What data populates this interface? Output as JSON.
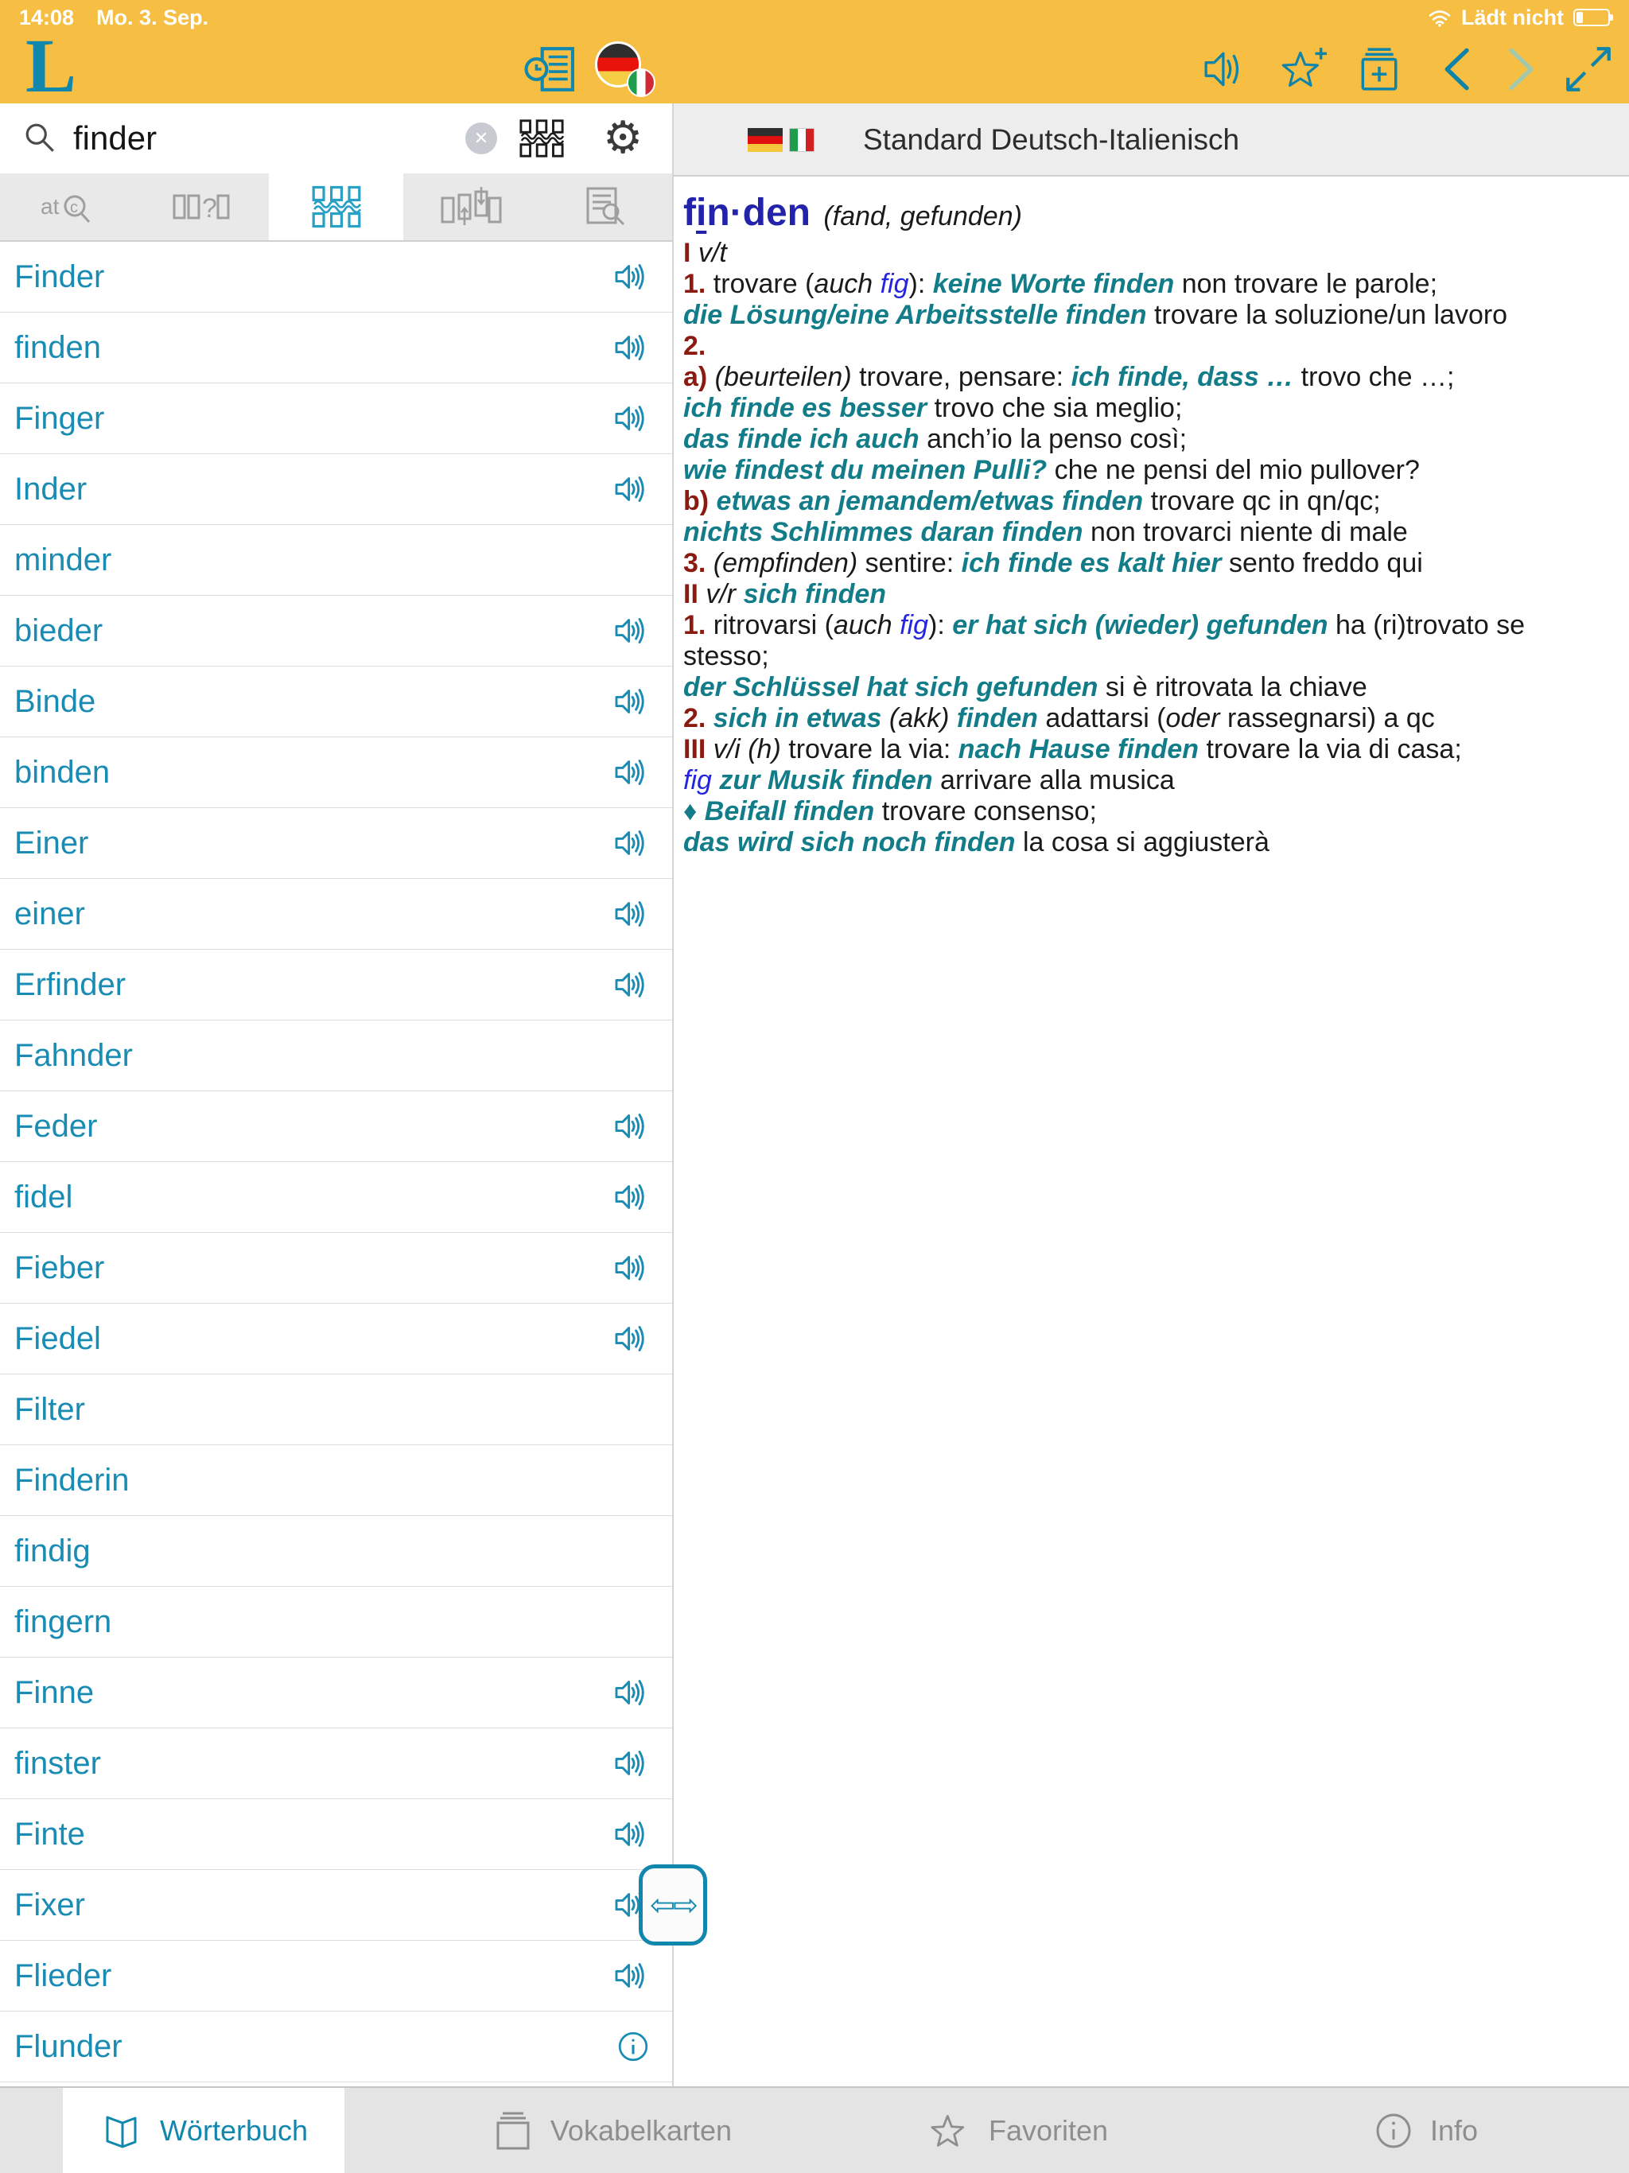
{
  "colors": {
    "toolbar_yellow": "#F6BF43",
    "accent_teal": "#1287AE",
    "list_blue": "#1A8CB4",
    "phrase_teal": "#127C88",
    "section_maroon": "#8B1A11",
    "headword_blue": "#2222AA",
    "link_blue": "#2525E0",
    "disabled_chevron": "#A3C9AD"
  },
  "status_bar": {
    "time": "14:08",
    "date": "Mo. 3. Sep.",
    "battery_label": "Lädt nicht"
  },
  "search": {
    "value": "finder",
    "placeholder": ""
  },
  "tabs": {
    "active_index": 2,
    "items": [
      {
        "name": "exact-search"
      },
      {
        "name": "wildcard-search"
      },
      {
        "name": "fuzzy-search"
      },
      {
        "name": "word-forms-search"
      },
      {
        "name": "fulltext-search"
      }
    ]
  },
  "word_list": {
    "items": [
      {
        "word": "Finder",
        "trailing_icon": "speaker"
      },
      {
        "word": "finden",
        "trailing_icon": "speaker"
      },
      {
        "word": "Finger",
        "trailing_icon": "speaker"
      },
      {
        "word": "Inder",
        "trailing_icon": "speaker"
      },
      {
        "word": "minder",
        "trailing_icon": null
      },
      {
        "word": "bieder",
        "trailing_icon": "speaker"
      },
      {
        "word": "Binde",
        "trailing_icon": "speaker"
      },
      {
        "word": "binden",
        "trailing_icon": "speaker"
      },
      {
        "word": "Einer",
        "trailing_icon": "speaker"
      },
      {
        "word": "einer",
        "trailing_icon": "speaker"
      },
      {
        "word": "Erfinder",
        "trailing_icon": "speaker"
      },
      {
        "word": "Fahnder",
        "trailing_icon": null
      },
      {
        "word": "Feder",
        "trailing_icon": "speaker"
      },
      {
        "word": "fidel",
        "trailing_icon": "speaker"
      },
      {
        "word": "Fieber",
        "trailing_icon": "speaker"
      },
      {
        "word": "Fiedel",
        "trailing_icon": "speaker"
      },
      {
        "word": "Filter",
        "trailing_icon": null
      },
      {
        "word": "Finderin",
        "trailing_icon": null
      },
      {
        "word": "findig",
        "trailing_icon": null
      },
      {
        "word": "fingern",
        "trailing_icon": null
      },
      {
        "word": "Finne",
        "trailing_icon": "speaker"
      },
      {
        "word": "finster",
        "trailing_icon": "speaker"
      },
      {
        "word": "Finte",
        "trailing_icon": "speaker"
      },
      {
        "word": "Fixer",
        "trailing_icon": "speaker"
      },
      {
        "word": "Flieder",
        "trailing_icon": "speaker"
      },
      {
        "word": "Flunder",
        "trailing_icon": "info"
      }
    ]
  },
  "dict_header": {
    "title": "Standard Deutsch-Italienisch"
  },
  "entry": {
    "headword": {
      "pre": "f",
      "stress": "i",
      "post": "n·den"
    },
    "inflection": "(fand, gefunden)",
    "paragraphs": [
      [
        {
          "s": "num",
          "t": "I"
        },
        {
          "s": "it",
          "t": " v/t"
        }
      ],
      [
        {
          "s": "num",
          "t": "1."
        },
        {
          "s": "pl",
          "t": " trovare ("
        },
        {
          "s": "it",
          "t": "auch"
        },
        {
          "s": "pl",
          "t": " "
        },
        {
          "s": "fig",
          "t": "fig"
        },
        {
          "s": "pl",
          "t": "): "
        },
        {
          "s": "ph",
          "t": "keine Worte finden"
        },
        {
          "s": "pl",
          "t": " non trovare le parole;"
        }
      ],
      [
        {
          "s": "ph",
          "t": "die Lösung/eine Arbeitsstelle finden"
        },
        {
          "s": "pl",
          "t": " trovare la soluzione/un lavoro"
        }
      ],
      [
        {
          "s": "num",
          "t": "2."
        }
      ],
      [
        {
          "s": "num",
          "t": "a)"
        },
        {
          "s": "it",
          "t": " (beurteilen)"
        },
        {
          "s": "pl",
          "t": " trovare, pensare: "
        },
        {
          "s": "ph",
          "t": "ich finde, dass …"
        },
        {
          "s": "pl",
          "t": " trovo che …;"
        }
      ],
      [
        {
          "s": "ph",
          "t": "ich finde es besser"
        },
        {
          "s": "pl",
          "t": " trovo che sia meglio;"
        }
      ],
      [
        {
          "s": "ph",
          "t": "das finde ich auch"
        },
        {
          "s": "pl",
          "t": " anch’io la penso così;"
        }
      ],
      [
        {
          "s": "ph",
          "t": "wie findest du meinen Pulli?"
        },
        {
          "s": "pl",
          "t": " che ne pensi del mio pullover?"
        }
      ],
      [
        {
          "s": "num",
          "t": "b)"
        },
        {
          "s": "ph",
          "t": " etwas an jemandem/etwas finden"
        },
        {
          "s": "pl",
          "t": " trovare qc in qn/qc;"
        }
      ],
      [
        {
          "s": "ph",
          "t": "nichts Schlimmes daran finden"
        },
        {
          "s": "pl",
          "t": " non trovarci niente di male"
        }
      ],
      [
        {
          "s": "num",
          "t": "3."
        },
        {
          "s": "it",
          "t": " (empfinden)"
        },
        {
          "s": "pl",
          "t": " sentire: "
        },
        {
          "s": "ph",
          "t": "ich finde es kalt hier"
        },
        {
          "s": "pl",
          "t": " sento freddo qui"
        }
      ],
      [
        {
          "s": "num",
          "t": "II"
        },
        {
          "s": "it",
          "t": " v/r"
        },
        {
          "s": "ph",
          "t": " sich finden"
        }
      ],
      [
        {
          "s": "num",
          "t": "1."
        },
        {
          "s": "pl",
          "t": " ritrovarsi ("
        },
        {
          "s": "it",
          "t": "auch"
        },
        {
          "s": "pl",
          "t": " "
        },
        {
          "s": "fig",
          "t": "fig"
        },
        {
          "s": "pl",
          "t": "): "
        },
        {
          "s": "ph",
          "t": "er hat sich (wieder) gefunden"
        },
        {
          "s": "pl",
          "t": " ha (ri)trovato se stesso;"
        }
      ],
      [
        {
          "s": "ph",
          "t": "der Schlüssel hat sich gefunden"
        },
        {
          "s": "pl",
          "t": " si è ritrovata la chiave"
        }
      ],
      [
        {
          "s": "num",
          "t": "2."
        },
        {
          "s": "ph",
          "t": " sich in etwas"
        },
        {
          "s": "it",
          "t": " (akk)"
        },
        {
          "s": "ph",
          "t": " finden"
        },
        {
          "s": "pl",
          "t": " adattarsi ("
        },
        {
          "s": "it",
          "t": "oder"
        },
        {
          "s": "pl",
          "t": " rassegnarsi) a qc"
        }
      ],
      [
        {
          "s": "num",
          "t": "III"
        },
        {
          "s": "it",
          "t": " v/i (h)"
        },
        {
          "s": "pl",
          "t": " trovare la via: "
        },
        {
          "s": "ph",
          "t": "nach Hause finden"
        },
        {
          "s": "pl",
          "t": " trovare la via di casa;"
        }
      ],
      [
        {
          "s": "fig",
          "t": "fig"
        },
        {
          "s": "ph",
          "t": " zur Musik finden"
        },
        {
          "s": "pl",
          "t": " arrivare alla musica"
        }
      ],
      [
        {
          "s": "diam",
          "t": "♦ "
        },
        {
          "s": "ph",
          "t": "Beifall finden"
        },
        {
          "s": "pl",
          "t": " trovare consenso;"
        }
      ],
      [
        {
          "s": "ph",
          "t": "das wird sich noch finden"
        },
        {
          "s": "pl",
          "t": " la cosa si aggiusterà"
        }
      ]
    ]
  },
  "bottom_nav": {
    "items": [
      {
        "label": "Wörterbuch",
        "active": true
      },
      {
        "label": "Vokabelkarten",
        "active": false
      },
      {
        "label": "Favoriten",
        "active": false
      },
      {
        "label": "Info",
        "active": false
      }
    ]
  }
}
